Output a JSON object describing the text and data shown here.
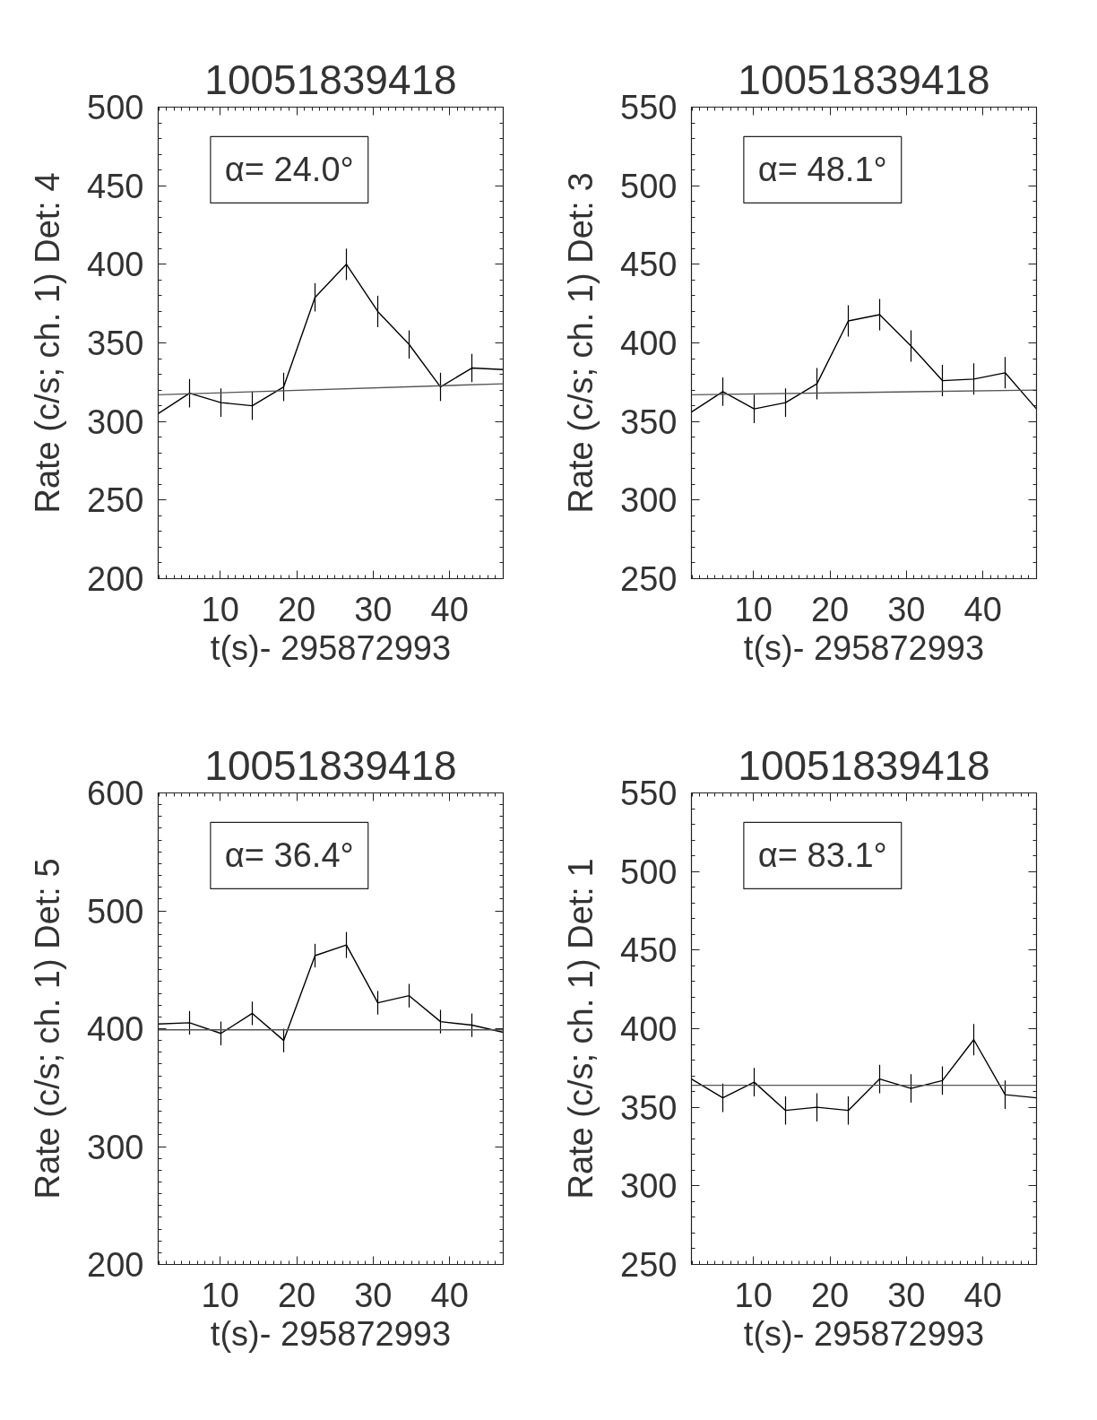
{
  "chart_data": [
    {
      "type": "line",
      "title": "10051839418",
      "xlabel": "t(s)- 295872993",
      "ylabel": "Rate (c/s; ch. 1) Det: 4",
      "annotations": [
        "α= 24.0°"
      ],
      "xlim": [
        1.9,
        47.0
      ],
      "xticks": [
        10,
        20,
        30,
        40
      ],
      "ylim": [
        200,
        500
      ],
      "yticks": [
        200,
        250,
        300,
        350,
        400,
        450,
        500
      ],
      "series": [
        {
          "color": "#000000",
          "x": [
            1.9,
            6.0,
            10.1,
            14.2,
            18.3,
            22.4,
            26.5,
            30.6,
            34.7,
            38.8,
            42.9,
            47.0
          ],
          "values": [
            305,
            318,
            312,
            310,
            322,
            379,
            400,
            370,
            349,
            322,
            334,
            333
          ],
          "errors": [
            null,
            9,
            9,
            9,
            9,
            9,
            10,
            10,
            9,
            9,
            9,
            null
          ]
        },
        {
          "type": "line",
          "color": "#555555",
          "x": [
            1.9,
            47.0
          ],
          "values": [
            317,
            324
          ]
        }
      ]
    },
    {
      "type": "line",
      "title": "10051839418",
      "xlabel": "t(s)- 295872993",
      "ylabel": "Rate (c/s; ch. 1) Det: 3",
      "annotations": [
        "α= 48.1°"
      ],
      "xlim": [
        1.9,
        47.0
      ],
      "xticks": [
        10,
        20,
        30,
        40
      ],
      "ylim": [
        250,
        550
      ],
      "yticks": [
        250,
        300,
        350,
        400,
        450,
        500,
        550
      ],
      "series": [
        {
          "color": "#000000",
          "x": [
            1.9,
            6.0,
            10.1,
            14.2,
            18.3,
            22.4,
            26.5,
            30.6,
            34.7,
            38.8,
            42.9,
            47.0
          ],
          "values": [
            356,
            369,
            358,
            362,
            374,
            414,
            418,
            398,
            376,
            377,
            381,
            358
          ],
          "errors": [
            null,
            9,
            9,
            9,
            10,
            10,
            10,
            10,
            10,
            10,
            10,
            null
          ]
        },
        {
          "type": "line",
          "color": "#555555",
          "x": [
            1.9,
            47.0
          ],
          "values": [
            367,
            370
          ]
        }
      ]
    },
    {
      "type": "line",
      "title": "10051839418",
      "xlabel": "t(s)- 295872993",
      "ylabel": "Rate (c/s; ch. 1) Det: 5",
      "annotations": [
        "α= 36.4°"
      ],
      "xlim": [
        1.9,
        47.0
      ],
      "xticks": [
        10,
        20,
        30,
        40
      ],
      "ylim": [
        200,
        600
      ],
      "yticks": [
        200,
        300,
        400,
        500,
        600
      ],
      "series": [
        {
          "color": "#000000",
          "x": [
            1.9,
            6.0,
            10.1,
            14.2,
            18.3,
            22.4,
            26.5,
            30.6,
            34.7,
            38.8,
            42.9,
            47.0
          ],
          "values": [
            404,
            405,
            396,
            413,
            390,
            462,
            471,
            422,
            428,
            406,
            403,
            397
          ],
          "errors": [
            null,
            10,
            10,
            10,
            10,
            10,
            11,
            10,
            10,
            10,
            10,
            null
          ]
        },
        {
          "type": "line",
          "color": "#555555",
          "x": [
            1.9,
            47.0
          ],
          "values": [
            399,
            399
          ]
        }
      ]
    },
    {
      "type": "line",
      "title": "10051839418",
      "xlabel": "t(s)- 295872993",
      "ylabel": "Rate (c/s; ch. 1) Det: 1",
      "annotations": [
        "α= 83.1°"
      ],
      "xlim": [
        1.9,
        47.0
      ],
      "xticks": [
        10,
        20,
        30,
        40
      ],
      "ylim": [
        250,
        550
      ],
      "yticks": [
        250,
        300,
        350,
        400,
        450,
        500,
        550
      ],
      "series": [
        {
          "color": "#000000",
          "x": [
            1.9,
            6.0,
            10.1,
            14.2,
            18.3,
            22.4,
            26.5,
            30.6,
            34.7,
            38.8,
            42.9,
            47.0
          ],
          "values": [
            368,
            356,
            366,
            348,
            350,
            348,
            368,
            362,
            367,
            393,
            358,
            356
          ],
          "errors": [
            null,
            9,
            9,
            9,
            9,
            9,
            9,
            9,
            9,
            10,
            9,
            null
          ]
        },
        {
          "type": "line",
          "color": "#555555",
          "x": [
            1.9,
            47.0
          ],
          "values": [
            364,
            364
          ]
        }
      ]
    }
  ]
}
